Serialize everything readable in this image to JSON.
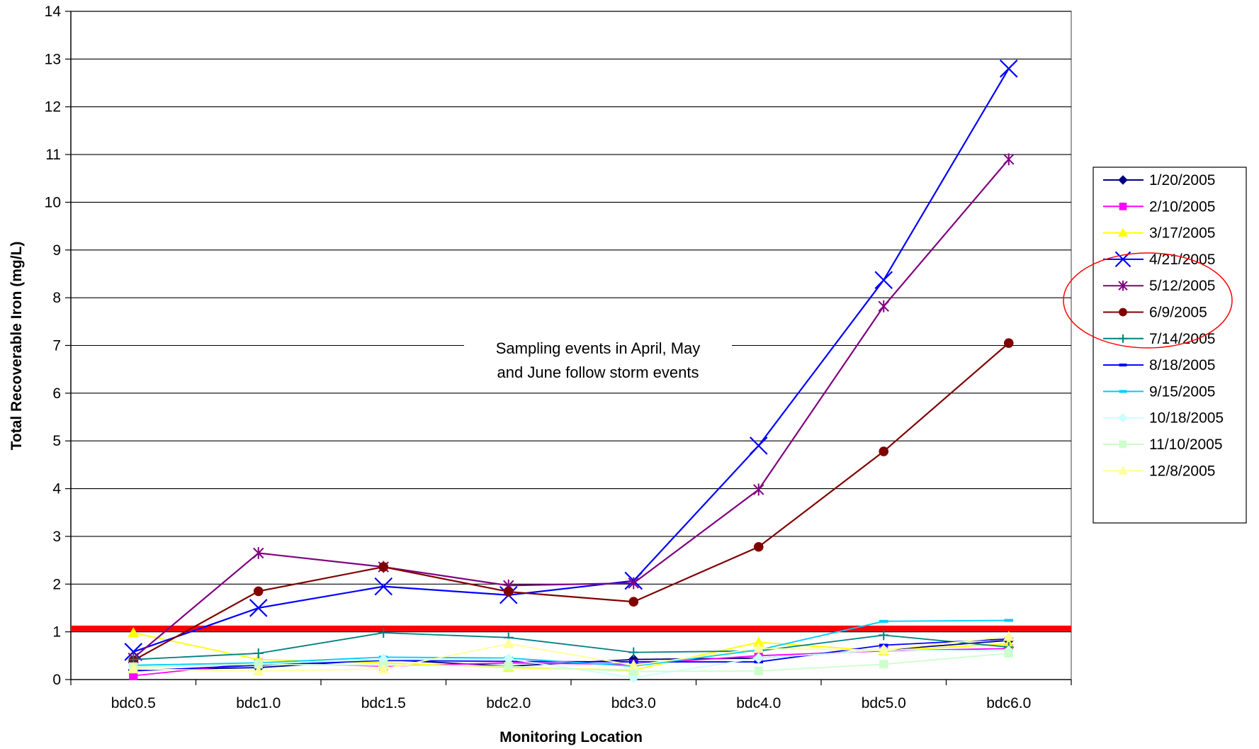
{
  "chart_data": {
    "type": "line",
    "categories": [
      "bdc0.5",
      "bdc1.0",
      "bdc1.5",
      "bdc2.0",
      "bdc3.0",
      "bdc4.0",
      "bdc5.0",
      "bdc6.0"
    ],
    "xlabel": "Monitoring Location",
    "ylabel": "Total Recoverable Iron (mg/L)",
    "ylim": [
      0,
      14
    ],
    "yticks": [
      0,
      1,
      2,
      3,
      4,
      5,
      6,
      7,
      8,
      9,
      10,
      11,
      12,
      13,
      14
    ],
    "grid": true,
    "legend_position": "right",
    "annotation_lines": [
      "Sampling events in April, May",
      "and June follow storm events"
    ],
    "threshold": {
      "value": 1.07,
      "color": "#ff0000"
    },
    "highlight_ellipse": {
      "series": [
        "4/21/2005",
        "5/12/2005",
        "6/9/2005"
      ],
      "color": "#ff0000"
    },
    "series": [
      {
        "name": "1/20/2005",
        "color": "#000080",
        "marker": "diamond",
        "values": [
          0.2,
          0.25,
          0.42,
          0.28,
          0.42,
          0.45,
          0.62,
          0.82
        ]
      },
      {
        "name": "2/10/2005",
        "color": "#ff00ff",
        "marker": "square",
        "values": [
          0.08,
          0.35,
          0.28,
          0.35,
          0.32,
          0.5,
          0.6,
          0.65
        ]
      },
      {
        "name": "3/17/2005",
        "color": "#ffff00",
        "marker": "triangle",
        "values": [
          0.98,
          0.42,
          0.35,
          0.25,
          0.2,
          0.78,
          0.6,
          0.75
        ]
      },
      {
        "name": "4/21/2005",
        "color": "#0000ff",
        "marker": "x",
        "values": [
          0.58,
          1.5,
          1.95,
          1.77,
          2.07,
          4.9,
          8.37,
          12.8
        ]
      },
      {
        "name": "5/12/2005",
        "color": "#800080",
        "marker": "star",
        "values": [
          0.45,
          2.65,
          2.36,
          1.97,
          2.02,
          3.98,
          7.82,
          10.9
        ]
      },
      {
        "name": "6/9/2005",
        "color": "#800000",
        "marker": "circle",
        "values": [
          0.4,
          1.85,
          2.36,
          1.84,
          1.63,
          2.78,
          4.78,
          7.05
        ]
      },
      {
        "name": "7/14/2005",
        "color": "#008080",
        "marker": "plus",
        "values": [
          0.42,
          0.55,
          0.98,
          0.88,
          0.57,
          0.6,
          0.93,
          0.68
        ]
      },
      {
        "name": "8/18/2005",
        "color": "#0000ff",
        "marker": "dash",
        "values": [
          0.18,
          0.3,
          0.4,
          0.38,
          0.37,
          0.37,
          0.72,
          0.85
        ]
      },
      {
        "name": "9/15/2005",
        "color": "#00ccff",
        "marker": "dash",
        "values": [
          0.3,
          0.35,
          0.47,
          0.45,
          0.28,
          0.62,
          1.22,
          1.24
        ]
      },
      {
        "name": "10/18/2005",
        "color": "#ccffff",
        "marker": "diamond",
        "values": [
          0.25,
          0.33,
          0.42,
          0.43,
          0.04,
          0.45,
          0.62,
          0.6
        ]
      },
      {
        "name": "11/10/2005",
        "color": "#ccffcc",
        "marker": "square",
        "values": [
          0.27,
          0.32,
          0.3,
          0.28,
          0.17,
          0.18,
          0.32,
          0.55
        ]
      },
      {
        "name": "12/8/2005",
        "color": "#ffff99",
        "marker": "triangle",
        "values": [
          0.22,
          0.18,
          0.22,
          0.75,
          0.3,
          0.65,
          0.62,
          0.9
        ]
      }
    ]
  }
}
